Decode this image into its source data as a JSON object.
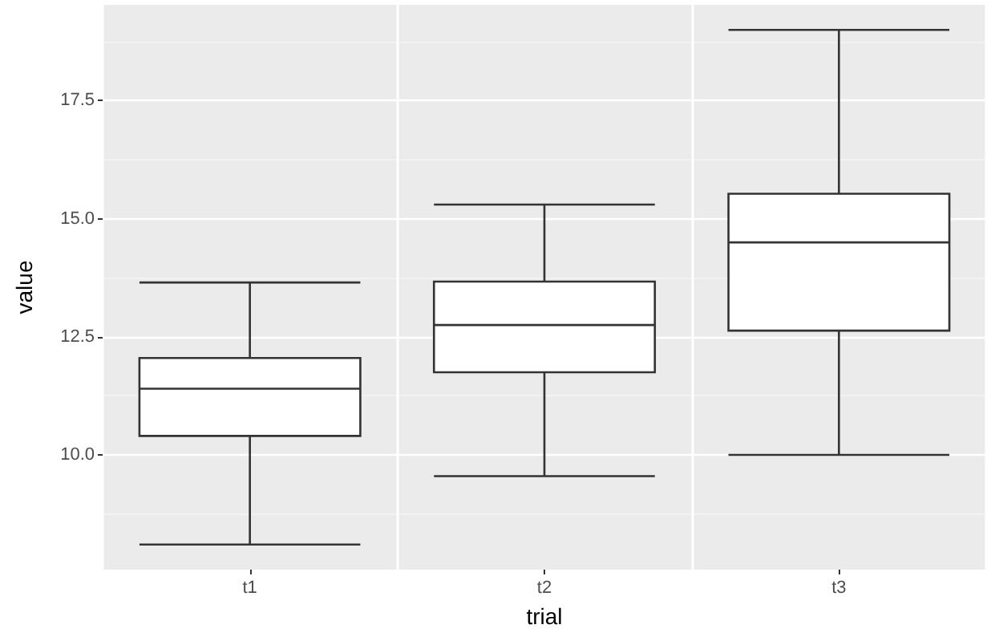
{
  "chart_data": {
    "type": "box",
    "xlabel": "trial",
    "ylabel": "value",
    "categories": [
      "t1",
      "t2",
      "t3"
    ],
    "boxes": [
      {
        "low": 8.1,
        "q1": 10.4,
        "median": 11.4,
        "q3": 12.05,
        "high": 13.65
      },
      {
        "low": 9.55,
        "q1": 11.75,
        "median": 12.75,
        "q3": 13.67,
        "high": 15.3
      },
      {
        "low": 10.0,
        "q1": 12.63,
        "median": 14.5,
        "q3": 15.53,
        "high": 19.0
      }
    ],
    "ylim": [
      7.57,
      19.53
    ],
    "yticks": [
      {
        "value": 10,
        "label": "10.0"
      },
      {
        "value": 12.5,
        "label": "12.5"
      },
      {
        "value": 15,
        "label": "15.0"
      },
      {
        "value": 17.5,
        "label": "17.5"
      }
    ],
    "grid": true
  }
}
